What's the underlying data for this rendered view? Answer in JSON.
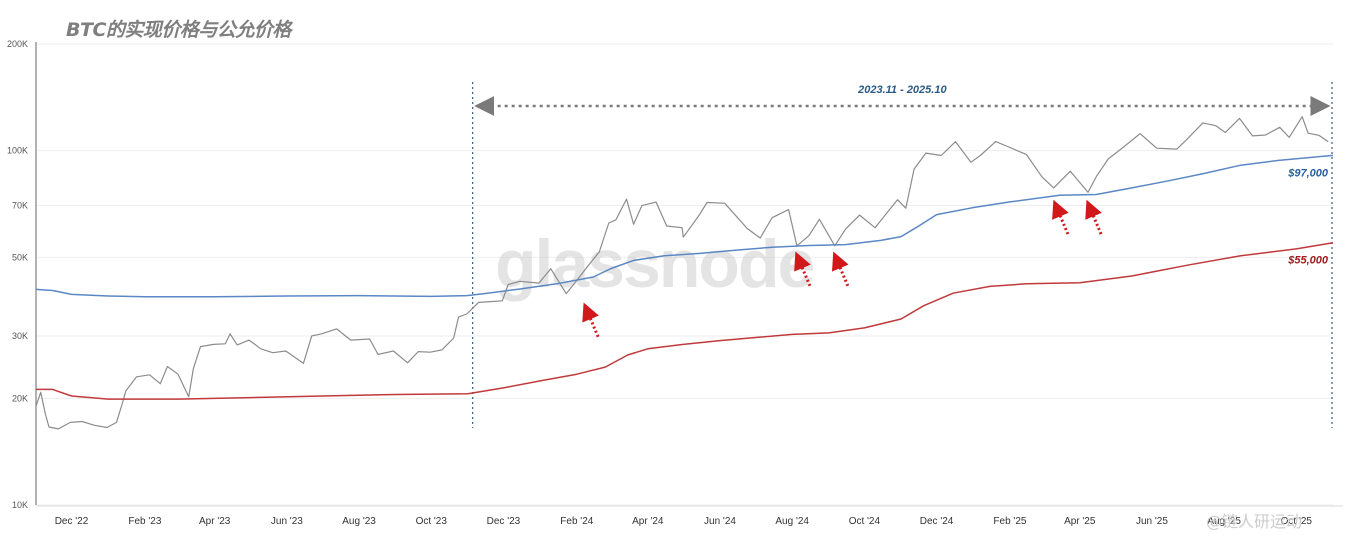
{
  "title": "BTC的实现价格与公允价格",
  "watermark": "glassnode",
  "footer_watermark": "@链人研运动",
  "chart_data": {
    "type": "line",
    "title": "BTC的实现价格与公允价格",
    "y_scale": "log",
    "ylim": [
      10000,
      200000
    ],
    "y_ticks": [
      {
        "value": 200000,
        "label": "200K"
      },
      {
        "value": 100000,
        "label": "100K"
      },
      {
        "value": 70000,
        "label": "70K"
      },
      {
        "value": 50000,
        "label": "50K"
      },
      {
        "value": 30000,
        "label": "30K"
      },
      {
        "value": 20000,
        "label": "20K"
      },
      {
        "value": 10000,
        "label": "10K"
      }
    ],
    "xlim": [
      "2022-11-01",
      "2025-11-01"
    ],
    "x_ticks": [
      {
        "date": "2022-12-01",
        "label": "Dec '22"
      },
      {
        "date": "2023-02-01",
        "label": "Feb '23"
      },
      {
        "date": "2023-04-01",
        "label": "Apr '23"
      },
      {
        "date": "2023-06-01",
        "label": "Jun '23"
      },
      {
        "date": "2023-08-01",
        "label": "Aug '23"
      },
      {
        "date": "2023-10-01",
        "label": "Oct '23"
      },
      {
        "date": "2023-12-01",
        "label": "Dec '23"
      },
      {
        "date": "2024-02-01",
        "label": "Feb '24"
      },
      {
        "date": "2024-04-01",
        "label": "Apr '24"
      },
      {
        "date": "2024-06-01",
        "label": "Jun '24"
      },
      {
        "date": "2024-08-01",
        "label": "Aug '24"
      },
      {
        "date": "2024-10-01",
        "label": "Oct '24"
      },
      {
        "date": "2024-12-01",
        "label": "Dec '24"
      },
      {
        "date": "2025-02-01",
        "label": "Feb '25"
      },
      {
        "date": "2025-04-01",
        "label": "Apr '25"
      },
      {
        "date": "2025-06-01",
        "label": "Jun '25"
      },
      {
        "date": "2025-08-01",
        "label": "Aug '25"
      },
      {
        "date": "2025-10-01",
        "label": "Oct '25"
      }
    ],
    "range_annotation": {
      "label": "2023.11 - 2025.10",
      "start": "2023-11-05",
      "end": "2025-11-01"
    },
    "series": [
      {
        "color": "#8c8c8c",
        "points": [
          [
            "2022-11-01",
            19000
          ],
          [
            "2022-11-05",
            20800
          ],
          [
            "2022-11-09",
            18000
          ],
          [
            "2022-11-12",
            16600
          ],
          [
            "2022-11-20",
            16400
          ],
          [
            "2022-11-30",
            17100
          ],
          [
            "2022-12-10",
            17200
          ],
          [
            "2022-12-20",
            16800
          ],
          [
            "2022-12-31",
            16550
          ],
          [
            "2023-01-08",
            17100
          ],
          [
            "2023-01-13",
            19400
          ],
          [
            "2023-01-16",
            21000
          ],
          [
            "2023-01-25",
            23000
          ],
          [
            "2023-02-05",
            23300
          ],
          [
            "2023-02-14",
            22000
          ],
          [
            "2023-02-20",
            24600
          ],
          [
            "2023-03-01",
            23400
          ],
          [
            "2023-03-10",
            20200
          ],
          [
            "2023-03-14",
            24300
          ],
          [
            "2023-03-20",
            28000
          ],
          [
            "2023-03-31",
            28400
          ],
          [
            "2023-04-10",
            28500
          ],
          [
            "2023-04-14",
            30400
          ],
          [
            "2023-04-20",
            28300
          ],
          [
            "2023-04-30",
            29200
          ],
          [
            "2023-05-10",
            27600
          ],
          [
            "2023-05-20",
            26900
          ],
          [
            "2023-05-31",
            27200
          ],
          [
            "2023-06-10",
            25800
          ],
          [
            "2023-06-15",
            25100
          ],
          [
            "2023-06-22",
            30000
          ],
          [
            "2023-06-30",
            30400
          ],
          [
            "2023-07-13",
            31400
          ],
          [
            "2023-07-25",
            29200
          ],
          [
            "2023-08-10",
            29400
          ],
          [
            "2023-08-17",
            26600
          ],
          [
            "2023-08-30",
            27200
          ],
          [
            "2023-09-11",
            25200
          ],
          [
            "2023-09-20",
            27100
          ],
          [
            "2023-09-30",
            27000
          ],
          [
            "2023-10-10",
            27400
          ],
          [
            "2023-10-20",
            29600
          ],
          [
            "2023-10-24",
            33900
          ],
          [
            "2023-10-31",
            34600
          ],
          [
            "2023-11-10",
            37300
          ],
          [
            "2023-11-20",
            37500
          ],
          [
            "2023-11-30",
            37700
          ],
          [
            "2023-12-05",
            41900
          ],
          [
            "2023-12-15",
            42800
          ],
          [
            "2023-12-31",
            42300
          ],
          [
            "2024-01-10",
            46400
          ],
          [
            "2024-01-23",
            39500
          ],
          [
            "2024-01-31",
            42600
          ],
          [
            "2024-02-10",
            47100
          ],
          [
            "2024-02-20",
            51800
          ],
          [
            "2024-02-28",
            62500
          ],
          [
            "2024-03-05",
            63800
          ],
          [
            "2024-03-14",
            73000
          ],
          [
            "2024-03-20",
            62000
          ],
          [
            "2024-03-27",
            70000
          ],
          [
            "2024-04-08",
            71600
          ],
          [
            "2024-04-17",
            61300
          ],
          [
            "2024-04-30",
            60600
          ],
          [
            "2024-05-01",
            57000
          ],
          [
            "2024-05-15",
            66200
          ],
          [
            "2024-05-21",
            71400
          ],
          [
            "2024-06-05",
            71100
          ],
          [
            "2024-06-24",
            60300
          ],
          [
            "2024-07-05",
            56700
          ],
          [
            "2024-07-15",
            64700
          ],
          [
            "2024-07-29",
            68200
          ],
          [
            "2024-08-05",
            53900
          ],
          [
            "2024-08-15",
            57500
          ],
          [
            "2024-08-24",
            64000
          ],
          [
            "2024-09-06",
            53900
          ],
          [
            "2024-09-15",
            60000
          ],
          [
            "2024-09-27",
            65800
          ],
          [
            "2024-10-10",
            60600
          ],
          [
            "2024-10-29",
            72700
          ],
          [
            "2024-11-05",
            68800
          ],
          [
            "2024-11-12",
            88700
          ],
          [
            "2024-11-22",
            98400
          ],
          [
            "2024-12-05",
            96900
          ],
          [
            "2024-12-17",
            106100
          ],
          [
            "2024-12-30",
            92700
          ],
          [
            "2025-01-07",
            96900
          ],
          [
            "2025-01-20",
            106100
          ],
          [
            "2025-01-31",
            102400
          ],
          [
            "2025-02-15",
            97500
          ],
          [
            "2025-02-28",
            84400
          ],
          [
            "2025-03-10",
            78500
          ],
          [
            "2025-03-24",
            87500
          ],
          [
            "2025-04-08",
            76300
          ],
          [
            "2025-04-15",
            84500
          ],
          [
            "2025-04-25",
            94700
          ],
          [
            "2025-05-09",
            103000
          ],
          [
            "2025-05-22",
            111700
          ],
          [
            "2025-06-05",
            101600
          ],
          [
            "2025-06-22",
            101000
          ],
          [
            "2025-06-30",
            107100
          ],
          [
            "2025-07-14",
            119800
          ],
          [
            "2025-07-25",
            117600
          ],
          [
            "2025-08-02",
            112500
          ],
          [
            "2025-08-14",
            123300
          ],
          [
            "2025-08-25",
            110100
          ],
          [
            "2025-09-05",
            110700
          ],
          [
            "2025-09-17",
            116400
          ],
          [
            "2025-09-25",
            109000
          ],
          [
            "2025-10-06",
            124700
          ],
          [
            "2025-10-11",
            112000
          ],
          [
            "2025-10-20",
            110500
          ],
          [
            "2025-10-28",
            106000
          ]
        ]
      },
      {
        "color": "#5b87c5",
        "end_label": "$97,000",
        "points": [
          [
            "2022-11-01",
            40600
          ],
          [
            "2022-11-15",
            40300
          ],
          [
            "2022-12-01",
            39300
          ],
          [
            "2023-01-01",
            38900
          ],
          [
            "2023-02-01",
            38700
          ],
          [
            "2023-04-01",
            38700
          ],
          [
            "2023-06-01",
            38900
          ],
          [
            "2023-08-01",
            39000
          ],
          [
            "2023-10-01",
            38800
          ],
          [
            "2023-10-31",
            39000
          ],
          [
            "2023-11-15",
            39500
          ],
          [
            "2023-12-15",
            40700
          ],
          [
            "2024-01-15",
            42100
          ],
          [
            "2024-02-15",
            44000
          ],
          [
            "2024-03-01",
            46500
          ],
          [
            "2024-03-20",
            49000
          ],
          [
            "2024-04-15",
            50500
          ],
          [
            "2024-05-15",
            51300
          ],
          [
            "2024-06-15",
            52400
          ],
          [
            "2024-07-15",
            53400
          ],
          [
            "2024-08-15",
            54000
          ],
          [
            "2024-09-15",
            54300
          ],
          [
            "2024-10-15",
            55800
          ],
          [
            "2024-11-01",
            57200
          ],
          [
            "2024-11-15",
            61000
          ],
          [
            "2024-12-01",
            66000
          ],
          [
            "2024-12-31",
            69000
          ],
          [
            "2025-02-01",
            71700
          ],
          [
            "2025-03-15",
            74800
          ],
          [
            "2025-04-15",
            75200
          ],
          [
            "2025-05-15",
            78500
          ],
          [
            "2025-06-15",
            82200
          ],
          [
            "2025-07-15",
            86200
          ],
          [
            "2025-08-15",
            91000
          ],
          [
            "2025-09-15",
            93800
          ],
          [
            "2025-11-01",
            97000
          ]
        ]
      },
      {
        "color": "#c0393b",
        "end_label": "$55,000",
        "points": [
          [
            "2022-11-01",
            21200
          ],
          [
            "2022-11-15",
            21200
          ],
          [
            "2022-12-01",
            20300
          ],
          [
            "2023-01-01",
            19900
          ],
          [
            "2023-03-01",
            19900
          ],
          [
            "2023-05-01",
            20100
          ],
          [
            "2023-07-01",
            20300
          ],
          [
            "2023-09-01",
            20500
          ],
          [
            "2023-11-01",
            20600
          ],
          [
            "2023-12-01",
            21400
          ],
          [
            "2024-01-01",
            22400
          ],
          [
            "2024-02-01",
            23400
          ],
          [
            "2024-02-25",
            24500
          ],
          [
            "2024-03-15",
            26500
          ],
          [
            "2024-04-01",
            27600
          ],
          [
            "2024-05-01",
            28400
          ],
          [
            "2024-06-01",
            29100
          ],
          [
            "2024-07-01",
            29700
          ],
          [
            "2024-08-01",
            30300
          ],
          [
            "2024-09-01",
            30600
          ],
          [
            "2024-10-01",
            31600
          ],
          [
            "2024-11-01",
            33500
          ],
          [
            "2024-11-20",
            36500
          ],
          [
            "2024-12-15",
            39600
          ],
          [
            "2025-01-15",
            41400
          ],
          [
            "2025-02-15",
            42100
          ],
          [
            "2025-04-01",
            42400
          ],
          [
            "2025-05-15",
            44300
          ],
          [
            "2025-07-01",
            47500
          ],
          [
            "2025-08-15",
            50500
          ],
          [
            "2025-10-01",
            52800
          ],
          [
            "2025-11-01",
            55000
          ]
        ]
      }
    ],
    "arrows": [
      {
        "date": "2024-02-08",
        "value": 37700
      },
      {
        "date": "2024-08-05",
        "value": 52500
      },
      {
        "date": "2024-09-06",
        "value": 52500
      },
      {
        "date": "2025-03-11",
        "value": 73500
      },
      {
        "date": "2025-04-08",
        "value": 73500
      }
    ]
  }
}
